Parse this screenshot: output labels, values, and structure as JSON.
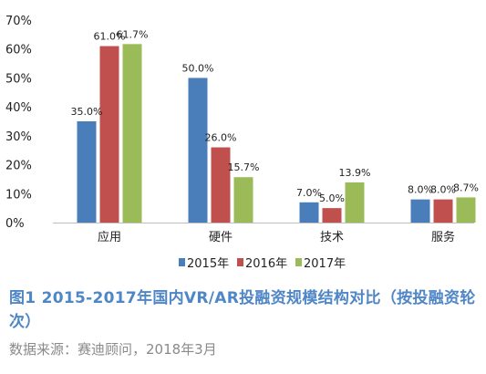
{
  "chart_data": {
    "type": "bar",
    "categories": [
      "应用",
      "硬件",
      "技术",
      "服务"
    ],
    "series": [
      {
        "name": "2015年",
        "color": "#4a7ebb",
        "values": [
          35.0,
          50.0,
          7.0,
          8.0
        ],
        "labels": [
          "35.0%",
          "50.0%",
          "7.0%",
          "8.0%"
        ]
      },
      {
        "name": "2016年",
        "color": "#c0504d",
        "values": [
          61.0,
          26.0,
          5.0,
          8.0
        ],
        "labels": [
          "61.0%",
          "26.0%",
          "5.0%",
          "8.0%"
        ]
      },
      {
        "name": "2017年",
        "color": "#9bbb59",
        "values": [
          61.7,
          15.7,
          13.9,
          8.7
        ],
        "labels": [
          "61.7%",
          "15.7%",
          "13.9%",
          "8.7%"
        ]
      }
    ],
    "ylim": [
      0,
      70
    ],
    "yticks": [
      0,
      10,
      20,
      30,
      40,
      50,
      60,
      70
    ],
    "ytick_labels": [
      "0%",
      "10%",
      "20%",
      "30%",
      "40%",
      "50%",
      "60%",
      "70%"
    ],
    "grid": false,
    "legend_position": "bottom"
  },
  "caption": "图1  2015-2017年国内VR/AR投融资规模结构对比（按投融资轮次）",
  "source": "数据来源：赛迪顾问，2018年3月"
}
